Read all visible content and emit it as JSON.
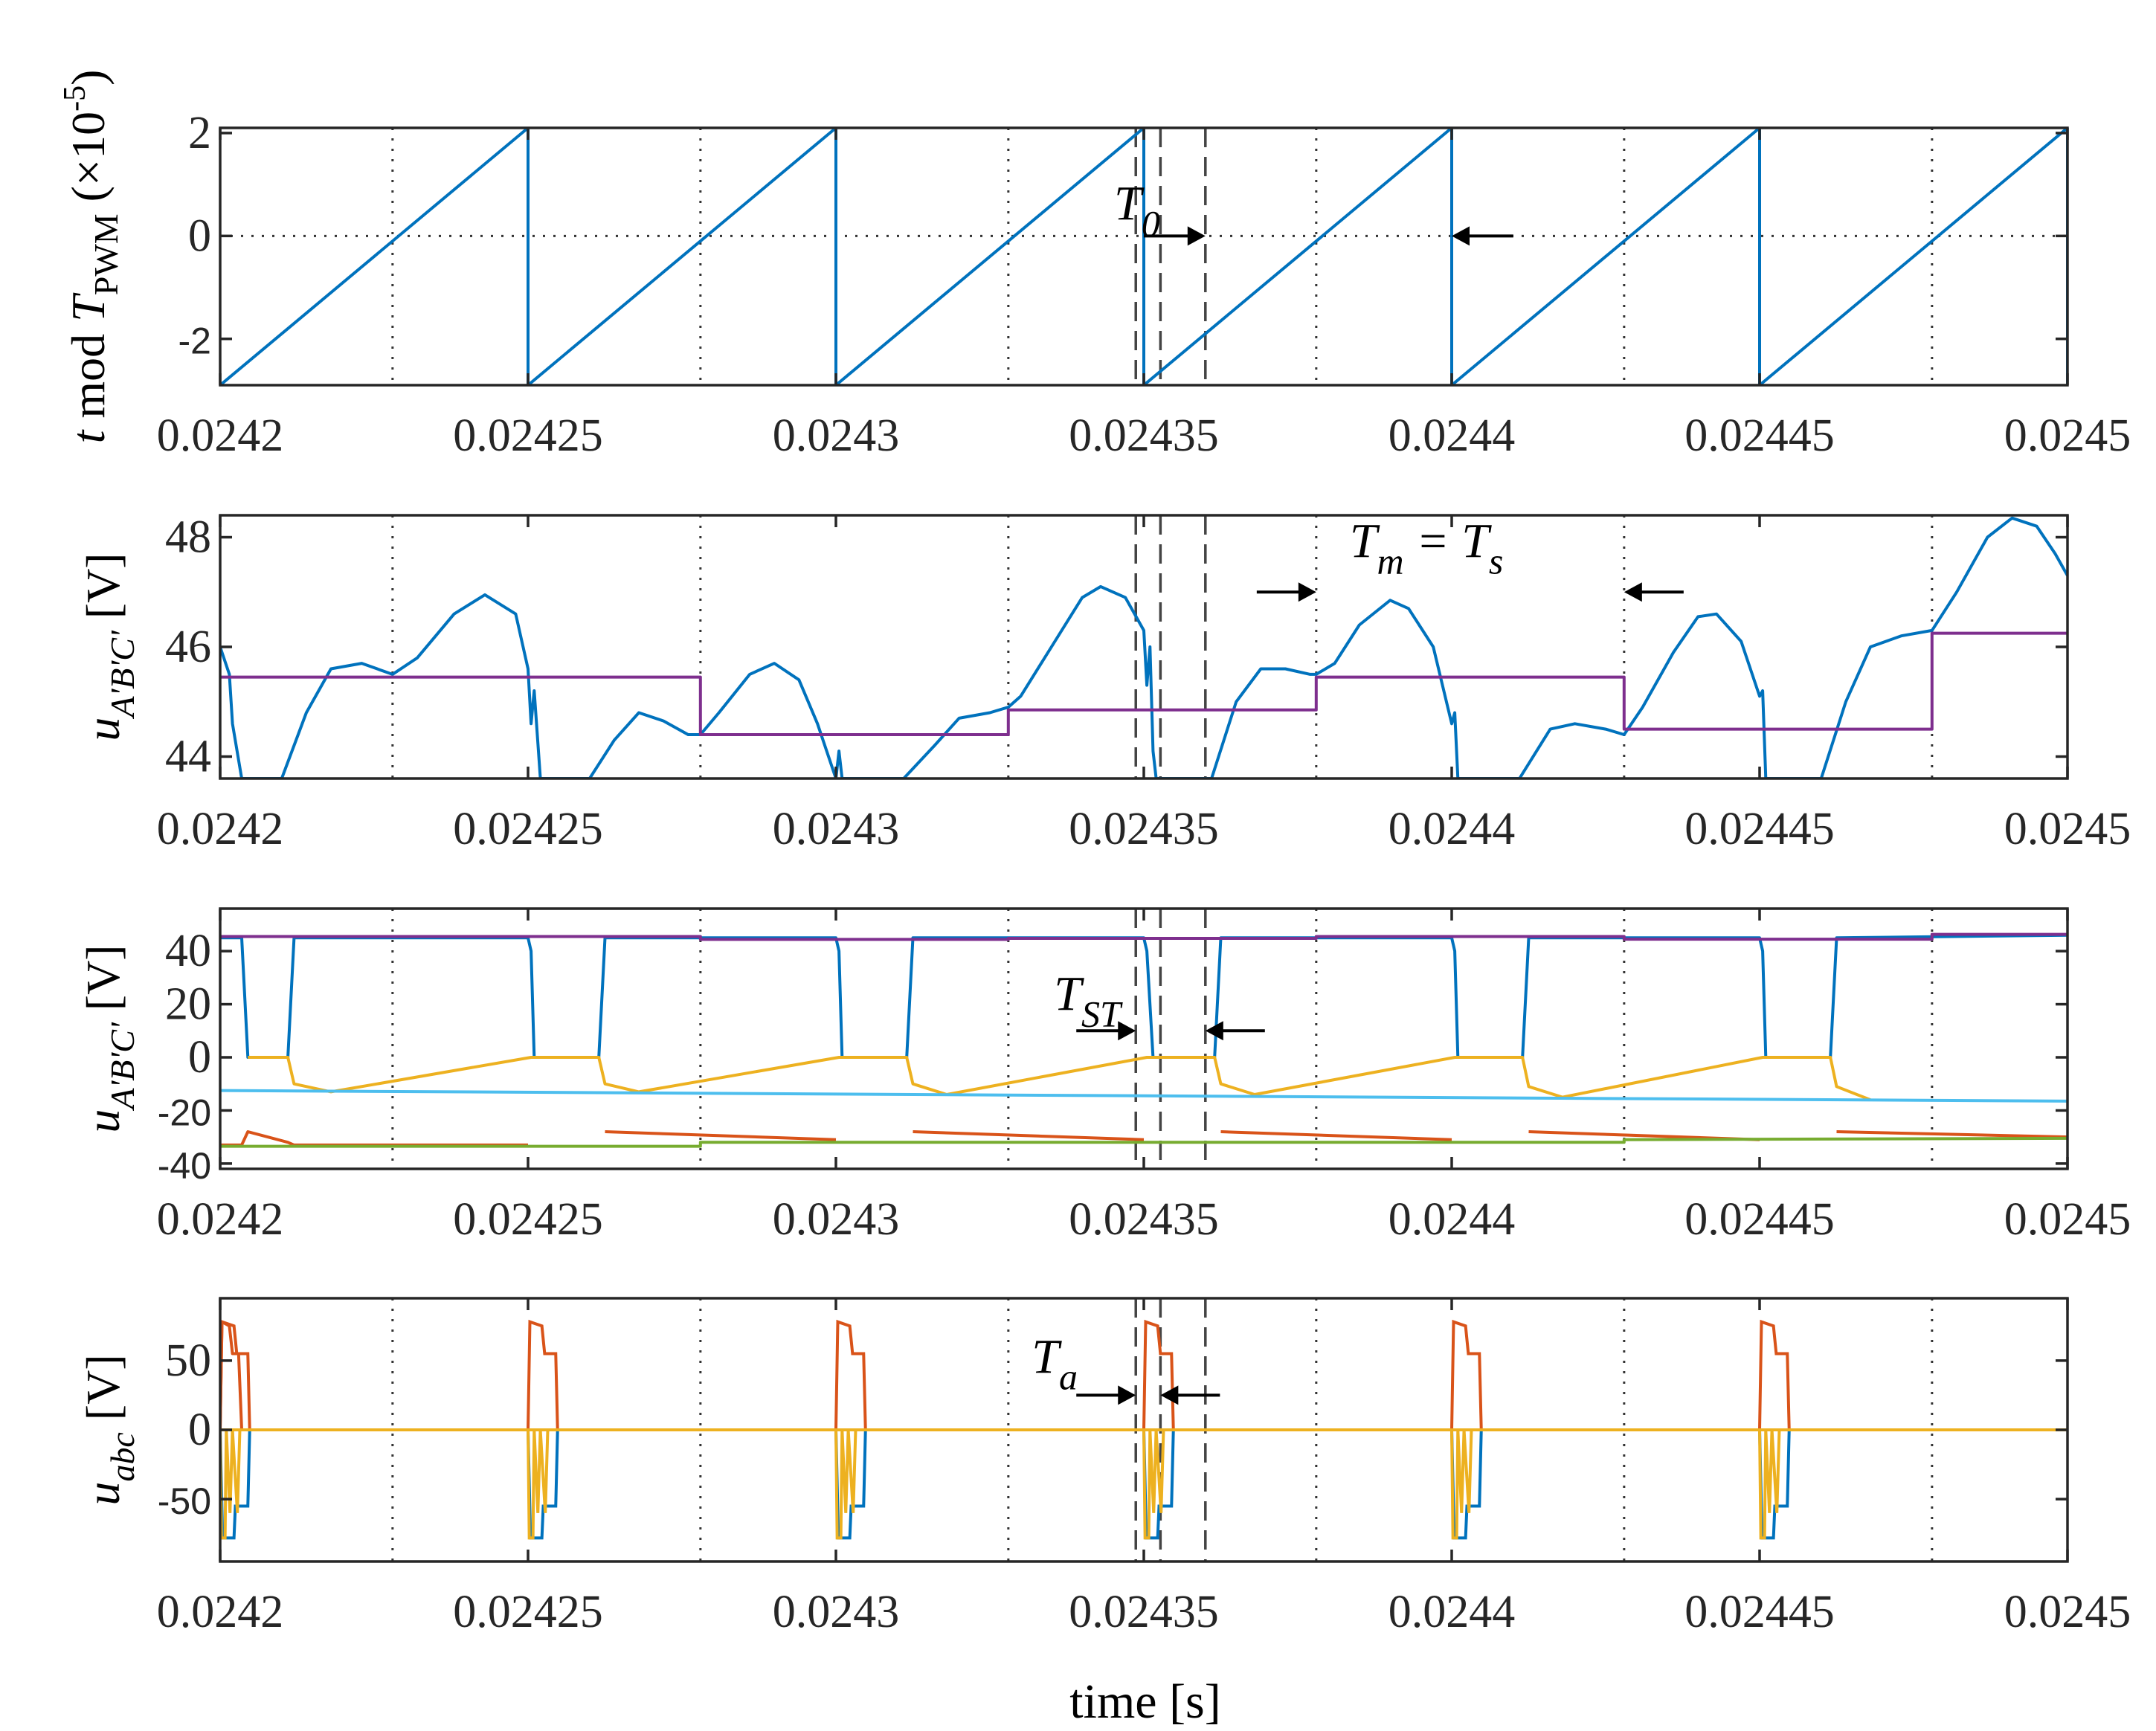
{
  "chart_data": [
    {
      "type": "line",
      "panel": "sawtooth",
      "ylabel_parts": [
        "t",
        " mod ",
        "T",
        "PWM",
        " (×10",
        "-5",
        ")"
      ],
      "xlim": [
        0.0242,
        0.0245
      ],
      "ylim": [
        -2.9,
        2.1
      ],
      "xticks": [
        "0.0242",
        "0.02425",
        "0.0243",
        "0.02435",
        "0.0244",
        "0.02445",
        "0.0245"
      ],
      "yticks": [
        {
          "v": -2,
          "t": "-2"
        },
        {
          "v": 0,
          "t": "0"
        },
        {
          "v": 2,
          "t": "2"
        }
      ],
      "grid_x": [
        0.024228,
        0.024278,
        0.024328,
        0.024378,
        0.024428,
        0.024478
      ],
      "dashed_x": [
        0.0243487,
        0.0243527,
        0.02436
      ],
      "zero_line": true,
      "series": [
        {
          "name": "t mod TPWM",
          "color": "#0072BD",
          "x": [
            0.0242,
            0.02425,
            0.02425,
            0.0243,
            0.0243,
            0.02435,
            0.02435,
            0.0244,
            0.0244,
            0.02445,
            0.02445,
            0.0245,
            0.0245
          ],
          "y": [
            -2.9,
            2.1,
            -2.9,
            2.1,
            -2.9,
            2.1,
            -2.9,
            2.1,
            -2.9,
            2.1,
            -2.9,
            2.1,
            -2.9
          ]
        }
      ],
      "annotations": [
        {
          "label": "T",
          "sub": "0",
          "from": 0.02435,
          "to": 0.02436,
          "y": 0,
          "arrow": "right"
        },
        {
          "from": 0.02441,
          "to": 0.0244,
          "y": 0,
          "arrow": "left"
        }
      ]
    },
    {
      "type": "line",
      "panel": "uABC-zoom",
      "ylabel_parts": [
        "u",
        "A'B'C'",
        " [V]"
      ],
      "xlim": [
        0.0242,
        0.0245
      ],
      "ylim": [
        43.6,
        48.4
      ],
      "xticks": [
        "0.0242",
        "0.02425",
        "0.0243",
        "0.02435",
        "0.0244",
        "0.02445",
        "0.0245"
      ],
      "yticks": [
        {
          "v": 44,
          "t": "44"
        },
        {
          "v": 46,
          "t": "46"
        },
        {
          "v": 48,
          "t": "48"
        }
      ],
      "grid_x": [
        0.024228,
        0.024278,
        0.024328,
        0.024378,
        0.024428,
        0.024478
      ],
      "dashed_x": [
        0.0243487,
        0.0243527,
        0.02436
      ],
      "series": [
        {
          "name": "uA'B'C' (blue)",
          "color": "#0072BD",
          "x": [
            0.0242,
            0.0242015,
            0.024202,
            0.0242035,
            0.024206,
            0.02421,
            0.024214,
            0.024218,
            0.024223,
            0.024228,
            0.024232,
            0.024238,
            0.024243,
            0.024248,
            0.02425,
            0.0242505,
            0.024251,
            0.024252,
            0.02426,
            0.024264,
            0.024268,
            0.024272,
            0.024276,
            0.024278,
            0.024281,
            0.024286,
            0.02429,
            0.024294,
            0.024297,
            0.0243,
            0.0243005,
            0.024301,
            0.024311,
            0.024316,
            0.02432,
            0.024325,
            0.024328,
            0.02433,
            0.024335,
            0.02434,
            0.024343,
            0.024347,
            0.02435,
            0.0243505,
            0.024351,
            0.0243515,
            0.024352,
            0.024361,
            0.024365,
            0.024369,
            0.024373,
            0.024377,
            0.024378,
            0.024381,
            0.024385,
            0.02439,
            0.024393,
            0.024397,
            0.0244,
            0.0244005,
            0.024401,
            0.024411,
            0.024416,
            0.02442,
            0.024425,
            0.024428,
            0.024431,
            0.024436,
            0.02444,
            0.024443,
            0.024447,
            0.02445,
            0.0244505,
            0.024451,
            0.02446,
            0.024464,
            0.024468,
            0.024473,
            0.024478,
            0.024482,
            0.024487,
            0.024491,
            0.024495,
            0.024498,
            0.0245
          ],
          "y": [
            46,
            45.5,
            44.6,
            43.6,
            43.6,
            43.6,
            44.8,
            45.6,
            45.7,
            45.5,
            45.8,
            46.6,
            46.95,
            46.6,
            45.6,
            44.6,
            45.2,
            43.6,
            43.6,
            44.3,
            44.8,
            44.65,
            44.4,
            44.4,
            44.8,
            45.5,
            45.7,
            45.4,
            44.6,
            43.6,
            44.1,
            43.6,
            43.6,
            44.2,
            44.7,
            44.8,
            44.9,
            45.1,
            46.0,
            46.9,
            47.1,
            46.9,
            46.3,
            45.3,
            46.0,
            44.1,
            43.6,
            43.6,
            45.0,
            45.6,
            45.6,
            45.5,
            45.5,
            45.7,
            46.4,
            46.85,
            46.7,
            46.0,
            44.6,
            44.8,
            43.6,
            43.6,
            44.5,
            44.6,
            44.5,
            44.4,
            44.9,
            45.9,
            46.55,
            46.6,
            46.1,
            45.1,
            45.2,
            43.6,
            43.6,
            45.0,
            46.0,
            46.2,
            46.3,
            47.0,
            48.0,
            48.35,
            48.2,
            47.7,
            47.3
          ]
        },
        {
          "name": "reference (purple)",
          "color": "#7E2F8E",
          "x": [
            0.0242,
            0.024278,
            0.024278,
            0.024328,
            0.024328,
            0.024378,
            0.024378,
            0.024428,
            0.024428,
            0.024478,
            0.024478,
            0.0245
          ],
          "y": [
            45.45,
            45.45,
            44.4,
            44.4,
            44.85,
            44.85,
            45.45,
            45.45,
            44.5,
            44.5,
            46.25,
            46.25
          ]
        }
      ],
      "annotations": [
        {
          "label": "T",
          "sub": "m",
          "label2": " = T",
          "sub2": "s",
          "from": 0.024378,
          "to": 0.024428,
          "y": 47.0,
          "arrow": "inward"
        }
      ]
    },
    {
      "type": "line",
      "panel": "uABC-full",
      "ylabel_parts": [
        "u",
        "A'B'C'",
        " [V]"
      ],
      "xlim": [
        0.0242,
        0.0245
      ],
      "ylim": [
        -42,
        56
      ],
      "xticks": [
        "0.0242",
        "0.02425",
        "0.0243",
        "0.02435",
        "0.0244",
        "0.02445",
        "0.0245"
      ],
      "yticks": [
        {
          "v": -40,
          "t": "-40"
        },
        {
          "v": -20,
          "t": "-20"
        },
        {
          "v": 0,
          "t": "0"
        },
        {
          "v": 20,
          "t": "20"
        },
        {
          "v": 40,
          "t": "40"
        }
      ],
      "grid_x": [
        0.024228,
        0.024278,
        0.024328,
        0.024378,
        0.024428,
        0.024478
      ],
      "dashed_x": [
        0.0243487,
        0.0243527,
        0.02436
      ],
      "series": [
        {
          "name": "ua' (blue)",
          "color": "#0072BD",
          "x": [
            0.0242,
            0.0242035,
            0.0242045,
            0.024211,
            0.024212,
            0.02425,
            0.0242505,
            0.024251,
            0.0242615,
            0.0242625,
            0.0243,
            0.0243005,
            0.024301,
            0.0243115,
            0.0243125,
            0.02435,
            0.0243505,
            0.0243515,
            0.0243615,
            0.0243625,
            0.0244,
            0.0244005,
            0.024401,
            0.0244115,
            0.0244125,
            0.02445,
            0.0244505,
            0.024451,
            0.0244615,
            0.0244625,
            0.0245
          ],
          "y": [
            45,
            45,
            0,
            0,
            45,
            45,
            40,
            0,
            0,
            45,
            45,
            40,
            0,
            0,
            45,
            45,
            40,
            0,
            0,
            45,
            45,
            40,
            0,
            0,
            45,
            45,
            40,
            0,
            0,
            45,
            46
          ]
        },
        {
          "name": "ub' (orange)",
          "color": "#D95319",
          "x": [
            0.0242,
            0.0242035,
            0.0242045,
            0.024211,
            0.024212,
            0.02425,
            0.0242505,
            0.0242615,
            0.0242625,
            0.0243,
            0.0243005,
            0.0243115,
            0.0243125,
            0.02435,
            0.0243505,
            0.0243615,
            0.0243625,
            0.0244,
            0.0244005,
            0.0244115,
            0.0244125,
            0.02445,
            0.0244505,
            0.0244615,
            0.0244625,
            0.0245
          ],
          "y": [
            -33,
            -33,
            -28,
            -32,
            -33,
            -33,
            null,
            null,
            -28,
            -31,
            null,
            null,
            -28,
            -31,
            null,
            null,
            -28,
            -31,
            null,
            null,
            -28,
            -31,
            null,
            null,
            -28,
            -30
          ]
        },
        {
          "name": "uc' (yellow)",
          "color": "#EDB120",
          "x": [
            0.0242045,
            0.024211,
            0.024212,
            0.024218,
            0.0242505,
            0.0242615,
            0.0242625,
            0.024268,
            0.0243005,
            0.0243115,
            0.0243125,
            0.024318,
            0.0243505,
            0.0243615,
            0.0243625,
            0.024368,
            0.0244005,
            0.0244115,
            0.0244125,
            0.024418,
            0.0244505,
            0.0244615,
            0.0244625,
            0.024468
          ],
          "y": [
            0,
            0,
            -10,
            -13,
            0,
            0,
            -10,
            -13,
            0,
            0,
            -10,
            -14,
            0,
            0,
            -10,
            -14,
            0,
            0,
            -11,
            -15,
            0,
            0,
            -11,
            -16
          ]
        },
        {
          "name": "ref a (purple)",
          "color": "#7E2F8E",
          "x": [
            0.0242,
            0.024278,
            0.024278,
            0.024328,
            0.024328,
            0.024378,
            0.024378,
            0.024428,
            0.024428,
            0.024478,
            0.024478,
            0.0245
          ],
          "y": [
            45.5,
            45.5,
            44.4,
            44.4,
            44.8,
            44.8,
            45.5,
            45.5,
            44.5,
            44.5,
            46.3,
            46.3
          ]
        },
        {
          "name": "ref b (cyan)",
          "color": "#4DBEEE",
          "x": [
            0.0242,
            0.0245
          ],
          "y": [
            -12.5,
            -16.5
          ]
        },
        {
          "name": "ref c (green)",
          "color": "#77AC30",
          "x": [
            0.0242,
            0.024278,
            0.024278,
            0.024428,
            0.024428,
            0.0245
          ],
          "y": [
            -33.5,
            -33.5,
            -32,
            -32,
            -31,
            -30.5
          ]
        }
      ],
      "annotations": [
        {
          "label": "T",
          "sub": "ST",
          "from": 0.0243487,
          "to": 0.02436,
          "y": 10,
          "arrow": "inward"
        }
      ]
    },
    {
      "type": "line",
      "panel": "uabc",
      "ylabel_parts": [
        "u",
        "abc",
        " [V]"
      ],
      "xlabel": "time [s]",
      "xlim": [
        0.0242,
        0.0245
      ],
      "ylim": [
        -95,
        95
      ],
      "xticks": [
        "0.0242",
        "0.02425",
        "0.0243",
        "0.02435",
        "0.0244",
        "0.02445",
        "0.0245"
      ],
      "yticks": [
        {
          "v": -50,
          "t": "-50"
        },
        {
          "v": 0,
          "t": "0"
        },
        {
          "v": 50,
          "t": "50"
        }
      ],
      "grid_x": [
        0.024228,
        0.024278,
        0.024328,
        0.024378,
        0.024428,
        0.024478
      ],
      "dashed_x": [
        0.0243487,
        0.0243527,
        0.02436
      ],
      "series": [
        {
          "name": "ua (orange)",
          "color": "#D95319",
          "x": [
            0.0242,
            0.0242003,
            0.0242015,
            0.024202,
            0.024203,
            0.0242035,
            0.0242,
            0.0245
          ],
          "y": [
            0,
            78,
            75,
            55,
            55,
            0,
            null,
            null
          ]
        },
        {
          "name": "ub (blue)",
          "color": "#0072BD",
          "x": [
            0.0242,
            0.0245
          ],
          "y": [
            0,
            0
          ]
        },
        {
          "name": "uc (yellow)",
          "color": "#EDB120",
          "x": [
            0.0242,
            0.0245
          ],
          "y": [
            0,
            0
          ]
        }
      ],
      "pulse_starts": [
        0.0242,
        0.02425,
        0.0243,
        0.02435,
        0.0244,
        0.02445
      ],
      "annotations": [
        {
          "label": "T",
          "sub": "a",
          "from": 0.0243487,
          "to": 0.0243527,
          "y": 25,
          "arrow": "inward"
        }
      ]
    }
  ]
}
